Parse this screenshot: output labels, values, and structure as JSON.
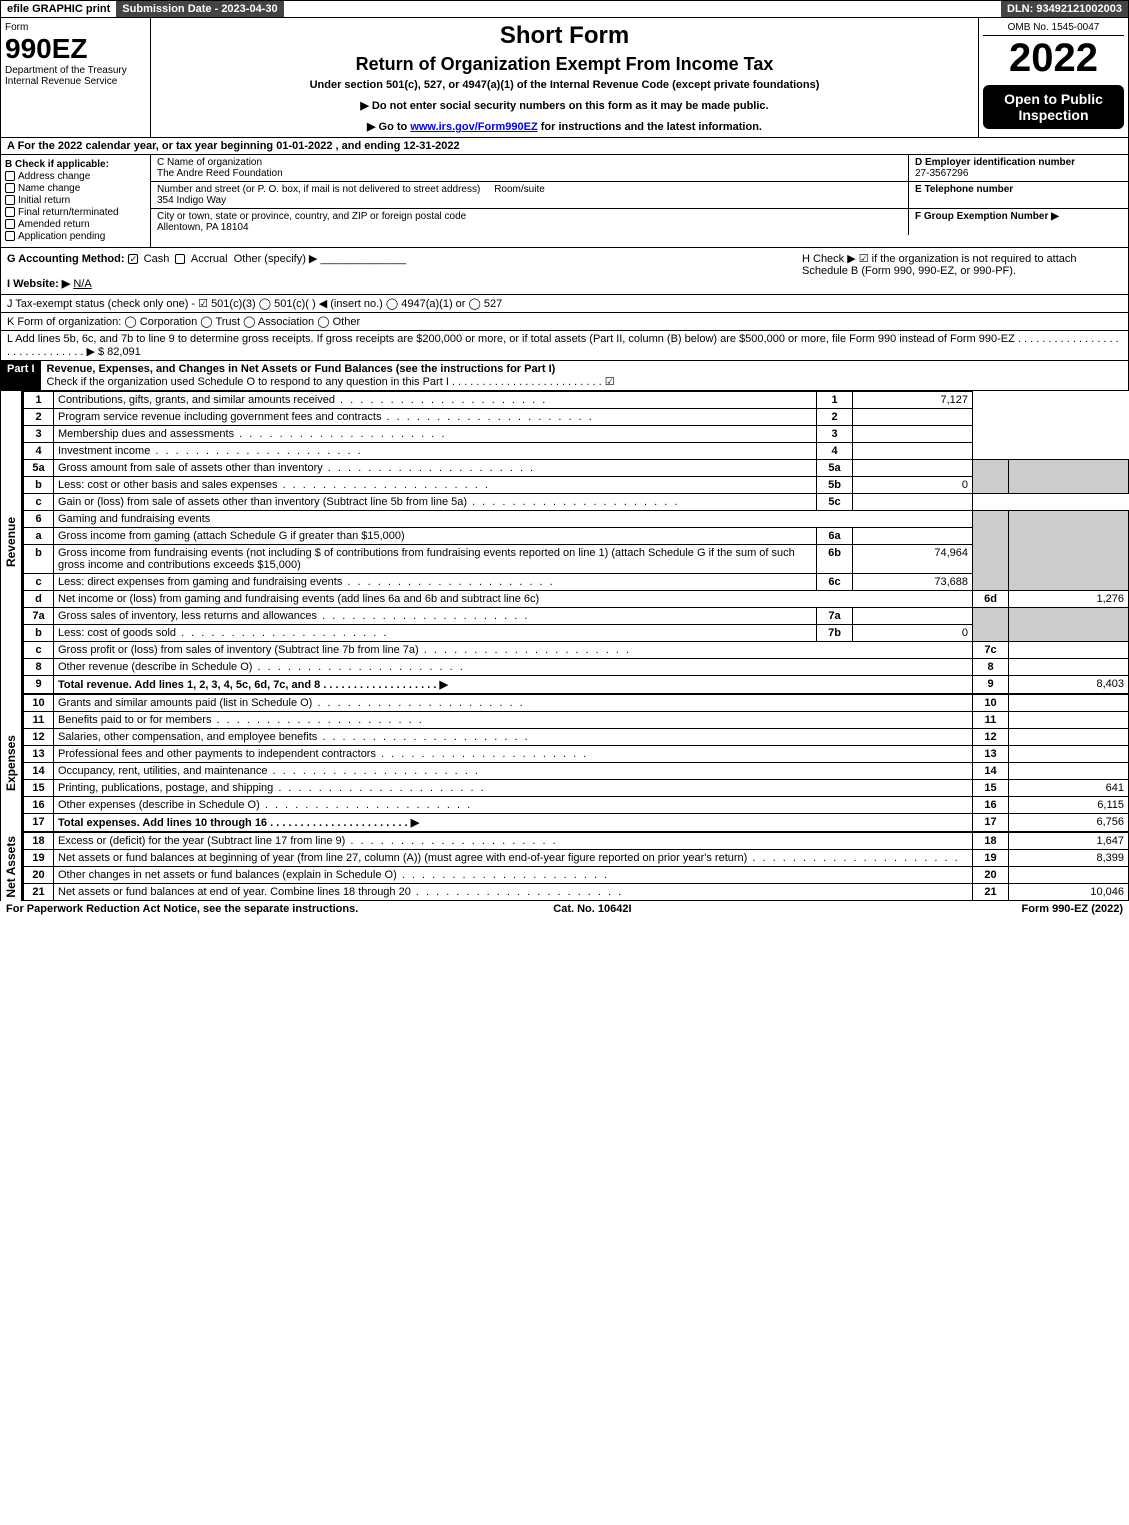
{
  "top": {
    "efile": "efile GRAPHIC print",
    "subdate_label": "Submission Date - 2023-04-30",
    "dln": "DLN: 93492121002003"
  },
  "header": {
    "form_label": "Form",
    "form_number": "990EZ",
    "dept": "Department of the Treasury",
    "irs": "Internal Revenue Service",
    "title1": "Short Form",
    "title2": "Return of Organization Exempt From Income Tax",
    "under": "Under section 501(c), 527, or 4947(a)(1) of the Internal Revenue Code (except private foundations)",
    "note1": "▶ Do not enter social security numbers on this form as it may be made public.",
    "note2_pre": "▶ Go to ",
    "note2_link": "www.irs.gov/Form990EZ",
    "note2_post": " for instructions and the latest information.",
    "omb": "OMB No. 1545-0047",
    "year": "2022",
    "public": "Open to Public Inspection"
  },
  "row_a": "A  For the 2022 calendar year, or tax year beginning 01-01-2022 , and ending 12-31-2022",
  "b": {
    "header": "B  Check if applicable:",
    "opts": [
      "Address change",
      "Name change",
      "Initial return",
      "Final return/terminated",
      "Amended return",
      "Application pending"
    ]
  },
  "c": {
    "label": "C Name of organization",
    "name": "The Andre Reed Foundation",
    "street_label": "Number and street (or P. O. box, if mail is not delivered to street address)",
    "room_label": "Room/suite",
    "street": "354 Indigo Way",
    "city_label": "City or town, state or province, country, and ZIP or foreign postal code",
    "city": "Allentown, PA  18104"
  },
  "d": {
    "label": "D Employer identification number",
    "value": "27-3567296"
  },
  "e": {
    "label": "E Telephone number",
    "value": ""
  },
  "f": {
    "label": "F Group Exemption Number  ▶",
    "value": ""
  },
  "g": {
    "label": "G Accounting Method:",
    "cash": "Cash",
    "accrual": "Accrual",
    "other": "Other (specify) ▶"
  },
  "h": {
    "text": "H  Check ▶  ☑  if the organization is not required to attach Schedule B (Form 990, 990-EZ, or 990-PF)."
  },
  "i": {
    "label": "I Website: ▶",
    "value": "N/A"
  },
  "j": {
    "text": "J Tax-exempt status (check only one) - ☑ 501(c)(3)  ◯ 501(c)(  ) ◀ (insert no.)  ◯ 4947(a)(1) or  ◯ 527"
  },
  "k": {
    "text": "K Form of organization:   ◯ Corporation   ◯ Trust   ◯ Association   ◯ Other"
  },
  "l": {
    "text": "L Add lines 5b, 6c, and 7b to line 9 to determine gross receipts. If gross receipts are $200,000 or more, or if total assets (Part II, column (B) below) are $500,000 or more, file Form 990 instead of Form 990-EZ . . . . . . . . . . . . . . . . . . . . . . . . . . . . . .  ▶ $ 82,091"
  },
  "part1": {
    "title": "Revenue, Expenses, and Changes in Net Assets or Fund Balances (see the instructions for Part I)",
    "sub": "Check if the organization used Schedule O to respond to any question in this Part I . . . . . . . . . . . . . . . . . . . . . . . . .  ☑"
  },
  "revenue_label": "Revenue",
  "expenses_label": "Expenses",
  "netassets_label": "Net Assets",
  "lines": {
    "l1": {
      "n": "1",
      "d": "Contributions, gifts, grants, and similar amounts received",
      "rn": "1",
      "rv": "7,127"
    },
    "l2": {
      "n": "2",
      "d": "Program service revenue including government fees and contracts",
      "rn": "2",
      "rv": ""
    },
    "l3": {
      "n": "3",
      "d": "Membership dues and assessments",
      "rn": "3",
      "rv": ""
    },
    "l4": {
      "n": "4",
      "d": "Investment income",
      "rn": "4",
      "rv": ""
    },
    "l5a": {
      "n": "5a",
      "d": "Gross amount from sale of assets other than inventory",
      "sn": "5a",
      "sv": ""
    },
    "l5b": {
      "n": "b",
      "d": "Less: cost or other basis and sales expenses",
      "sn": "5b",
      "sv": "0"
    },
    "l5c": {
      "n": "c",
      "d": "Gain or (loss) from sale of assets other than inventory (Subtract line 5b from line 5a)",
      "rn": "5c",
      "rv": ""
    },
    "l6": {
      "n": "6",
      "d": "Gaming and fundraising events"
    },
    "l6a": {
      "n": "a",
      "d": "Gross income from gaming (attach Schedule G if greater than $15,000)",
      "sn": "6a",
      "sv": ""
    },
    "l6b": {
      "n": "b",
      "d": "Gross income from fundraising events (not including $                     of contributions from fundraising events reported on line 1) (attach Schedule G if the sum of such gross income and contributions exceeds $15,000)",
      "sn": "6b",
      "sv": "74,964"
    },
    "l6c": {
      "n": "c",
      "d": "Less: direct expenses from gaming and fundraising events",
      "sn": "6c",
      "sv": "73,688"
    },
    "l6d": {
      "n": "d",
      "d": "Net income or (loss) from gaming and fundraising events (add lines 6a and 6b and subtract line 6c)",
      "rn": "6d",
      "rv": "1,276"
    },
    "l7a": {
      "n": "7a",
      "d": "Gross sales of inventory, less returns and allowances",
      "sn": "7a",
      "sv": ""
    },
    "l7b": {
      "n": "b",
      "d": "Less: cost of goods sold",
      "sn": "7b",
      "sv": "0"
    },
    "l7c": {
      "n": "c",
      "d": "Gross profit or (loss) from sales of inventory (Subtract line 7b from line 7a)",
      "rn": "7c",
      "rv": ""
    },
    "l8": {
      "n": "8",
      "d": "Other revenue (describe in Schedule O)",
      "rn": "8",
      "rv": ""
    },
    "l9": {
      "n": "9",
      "d": "Total revenue. Add lines 1, 2, 3, 4, 5c, 6d, 7c, and 8  . . . . . . . . . . . . . . . . . . .  ▶",
      "rn": "9",
      "rv": "8,403"
    },
    "l10": {
      "n": "10",
      "d": "Grants and similar amounts paid (list in Schedule O)",
      "rn": "10",
      "rv": ""
    },
    "l11": {
      "n": "11",
      "d": "Benefits paid to or for members",
      "rn": "11",
      "rv": ""
    },
    "l12": {
      "n": "12",
      "d": "Salaries, other compensation, and employee benefits",
      "rn": "12",
      "rv": ""
    },
    "l13": {
      "n": "13",
      "d": "Professional fees and other payments to independent contractors",
      "rn": "13",
      "rv": ""
    },
    "l14": {
      "n": "14",
      "d": "Occupancy, rent, utilities, and maintenance",
      "rn": "14",
      "rv": ""
    },
    "l15": {
      "n": "15",
      "d": "Printing, publications, postage, and shipping",
      "rn": "15",
      "rv": "641"
    },
    "l16": {
      "n": "16",
      "d": "Other expenses (describe in Schedule O)",
      "rn": "16",
      "rv": "6,115"
    },
    "l17": {
      "n": "17",
      "d": "Total expenses. Add lines 10 through 16   . . . . . . . . . . . . . . . . . . . . . . .  ▶",
      "rn": "17",
      "rv": "6,756"
    },
    "l18": {
      "n": "18",
      "d": "Excess or (deficit) for the year (Subtract line 17 from line 9)",
      "rn": "18",
      "rv": "1,647"
    },
    "l19": {
      "n": "19",
      "d": "Net assets or fund balances at beginning of year (from line 27, column (A)) (must agree with end-of-year figure reported on prior year's return)",
      "rn": "19",
      "rv": "8,399"
    },
    "l20": {
      "n": "20",
      "d": "Other changes in net assets or fund balances (explain in Schedule O)",
      "rn": "20",
      "rv": ""
    },
    "l21": {
      "n": "21",
      "d": "Net assets or fund balances at end of year. Combine lines 18 through 20",
      "rn": "21",
      "rv": "10,046"
    }
  },
  "footer": {
    "left": "For Paperwork Reduction Act Notice, see the separate instructions.",
    "mid": "Cat. No. 10642I",
    "right": "Form 990-EZ (2022)"
  },
  "colors": {
    "black": "#000000",
    "darkgray": "#444444",
    "shade": "#cccccc",
    "link": "#0000ff"
  }
}
